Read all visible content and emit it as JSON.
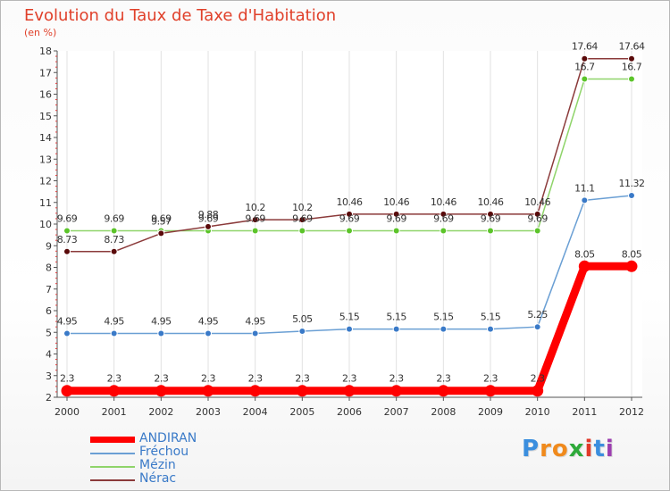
{
  "title": "Evolution du Taux de Taxe d'Habitation",
  "unit": "(en %)",
  "brand": {
    "letters": [
      "P",
      "r",
      "o",
      "x",
      "i",
      "t",
      "i"
    ],
    "colors": [
      "#3b8ede",
      "#f08a1c",
      "#f08a1c",
      "#2eaa3a",
      "#e23a2a",
      "#3b8ede",
      "#9c3fb0"
    ]
  },
  "chart_data": {
    "type": "line",
    "x": [
      "2000",
      "2001",
      "2002",
      "2003",
      "2004",
      "2005",
      "2006",
      "2007",
      "2008",
      "2009",
      "2010",
      "2011",
      "2012"
    ],
    "ylim": [
      2,
      18
    ],
    "yticks": [
      "2",
      "3",
      "4",
      "5",
      "6",
      "7",
      "8",
      "9",
      "10",
      "11",
      "12",
      "13",
      "14",
      "15",
      "16",
      "17",
      "18"
    ],
    "grid": "vertical",
    "legend_position": "bottom-left",
    "series": [
      {
        "name": "ANDIRAN",
        "color": "#ff0000",
        "highlight": true,
        "values": [
          2.3,
          2.3,
          2.3,
          2.3,
          2.3,
          2.3,
          2.3,
          2.3,
          2.3,
          2.3,
          2.3,
          8.05,
          8.05
        ],
        "labels": [
          "2.3",
          "2.3",
          "2.3",
          "2.3",
          "2.3",
          "2.3",
          "2.3",
          "2.3",
          "2.3",
          "2.3",
          "2.3",
          "8.05",
          "8.05"
        ]
      },
      {
        "name": "Fréchou",
        "color": "#6a9fd4",
        "point_color": "#3a7ac8",
        "values": [
          4.95,
          4.95,
          4.95,
          4.95,
          4.95,
          5.05,
          5.15,
          5.15,
          5.15,
          5.15,
          5.25,
          11.1,
          11.32
        ],
        "labels": [
          "4.95",
          "4.95",
          "4.95",
          "4.95",
          "4.95",
          "5.05",
          "5.15",
          "5.15",
          "5.15",
          "5.15",
          "5.25",
          "11.1",
          "11.32"
        ]
      },
      {
        "name": "Mézin",
        "color": "#8fd46a",
        "point_color": "#5cc42a",
        "values": [
          9.69,
          9.69,
          9.69,
          9.69,
          9.69,
          9.69,
          9.69,
          9.69,
          9.69,
          9.69,
          9.69,
          16.7,
          16.7
        ],
        "labels": [
          "9.69",
          "9.69",
          "9.69",
          "9.69",
          "9.69",
          "9.69",
          "9.69",
          "9.69",
          "9.69",
          "9.69",
          "9.69",
          "16.7",
          "16.7"
        ]
      },
      {
        "name": "Nérac",
        "color": "#8b3a3a",
        "point_color": "#5a0a0a",
        "values": [
          8.73,
          8.73,
          9.57,
          9.88,
          10.2,
          10.2,
          10.46,
          10.46,
          10.46,
          10.46,
          10.46,
          17.64,
          17.64
        ],
        "labels": [
          "8.73",
          "8.73",
          "9.57",
          "9.88",
          "10.2",
          "10.2",
          "10.46",
          "10.46",
          "10.46",
          "10.46",
          "10.46",
          "17.64",
          "17.64"
        ]
      }
    ]
  }
}
